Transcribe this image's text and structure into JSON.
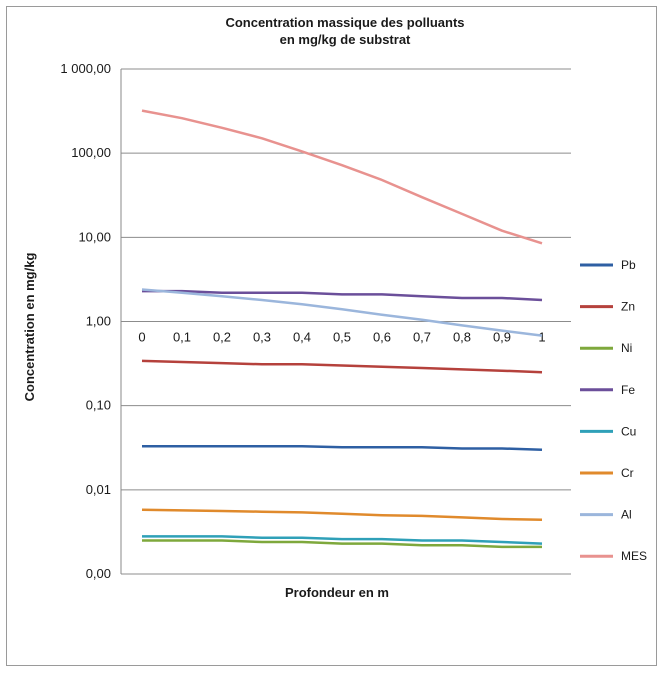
{
  "chart_data": {
    "type": "line",
    "title_lines": [
      "Concentration massique des polluants",
      "en mg/kg de substrat"
    ],
    "xlabel": "Profondeur en m",
    "ylabel": "Concentration en mg/kg",
    "y_scale": "log",
    "ylim": [
      0.001,
      1000
    ],
    "y_tick_values": [
      0.001,
      0.01,
      0.1,
      1,
      10,
      100,
      1000
    ],
    "y_tick_labels": [
      "0,00",
      "0,01",
      "0,10",
      "1,00",
      "10,00",
      "100,00",
      "1 000,00"
    ],
    "x_tick_labels": [
      "0",
      "0,1",
      "0,2",
      "0,3",
      "0,4",
      "0,5",
      "0,6",
      "0,7",
      "0,8",
      "0,9",
      "1"
    ],
    "x": [
      0,
      0.1,
      0.2,
      0.3,
      0.4,
      0.5,
      0.6,
      0.7,
      0.8,
      0.9,
      1
    ],
    "grid": "horizontal",
    "legend_position": "right",
    "series": [
      {
        "name": "Pb",
        "color": "#2e5fa3",
        "values": [
          0.033,
          0.033,
          0.033,
          0.033,
          0.033,
          0.032,
          0.032,
          0.032,
          0.031,
          0.031,
          0.03
        ]
      },
      {
        "name": "Zn",
        "color": "#b5413c",
        "values": [
          0.34,
          0.33,
          0.32,
          0.31,
          0.31,
          0.3,
          0.29,
          0.28,
          0.27,
          0.26,
          0.25
        ]
      },
      {
        "name": "Ni",
        "color": "#7ea83c",
        "values": [
          0.0025,
          0.0025,
          0.0025,
          0.0024,
          0.0024,
          0.0023,
          0.0023,
          0.0022,
          0.0022,
          0.0021,
          0.0021
        ]
      },
      {
        "name": "Fe",
        "color": "#6b4f9a",
        "values": [
          2.3,
          2.3,
          2.2,
          2.2,
          2.2,
          2.1,
          2.1,
          2.0,
          1.9,
          1.9,
          1.8
        ]
      },
      {
        "name": "Cu",
        "color": "#2fa0b8",
        "values": [
          0.0028,
          0.0028,
          0.0028,
          0.0027,
          0.0027,
          0.0026,
          0.0026,
          0.0025,
          0.0025,
          0.0024,
          0.0023
        ]
      },
      {
        "name": "Cr",
        "color": "#e08a2c",
        "values": [
          0.0058,
          0.0057,
          0.0056,
          0.0055,
          0.0054,
          0.0052,
          0.005,
          0.0049,
          0.0047,
          0.0045,
          0.0044
        ]
      },
      {
        "name": "Al",
        "color": "#9bb6dc",
        "values": [
          2.4,
          2.2,
          2.0,
          1.8,
          1.6,
          1.4,
          1.2,
          1.05,
          0.9,
          0.78,
          0.68
        ]
      },
      {
        "name": "MES",
        "color": "#e8928f",
        "values": [
          320,
          260,
          200,
          150,
          105,
          72,
          48,
          30,
          19,
          12,
          8.5
        ]
      }
    ]
  }
}
